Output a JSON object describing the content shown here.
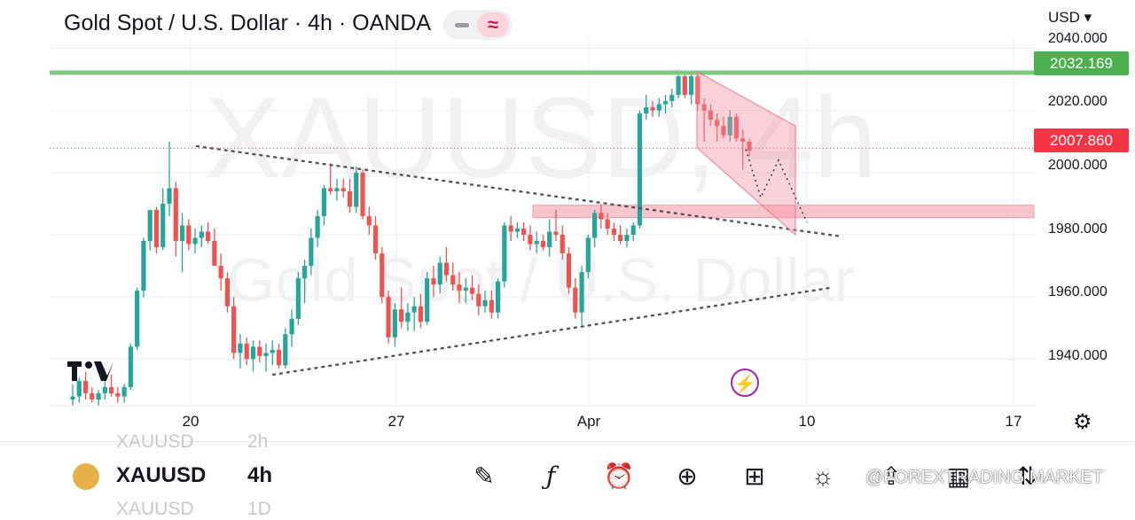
{
  "header": {
    "title": "Gold Spot / U.S. Dollar · 4h · OANDA",
    "currency": "USD"
  },
  "watermark_text": {
    "symbol_tf": "XAUUSD, 4h",
    "name": "Gold Spot / U.S. Dollar"
  },
  "price_axis": {
    "labels": [
      "2040.000",
      "2020.000",
      "2000.000",
      "1980.000",
      "1960.000",
      "1940.000"
    ]
  },
  "price_tags": {
    "resistance": "2032.169",
    "current": "2007.860"
  },
  "time_axis": {
    "labels": [
      "20",
      "27",
      "Apr",
      "10",
      "17"
    ]
  },
  "bottom_bar": {
    "ghost_above_symbol": "XAUUSD",
    "ghost_above_tf": "2h",
    "symbol": "XAUUSD",
    "timeframe": "4h",
    "ghost_below_symbol": "XAUUSD",
    "ghost_below_tf": "1D",
    "tools": [
      "draw-icon",
      "indicators-icon",
      "alert-icon",
      "add-icon",
      "layout-icon",
      "ideas-icon",
      "share-icon",
      "calendar-icon",
      "compare-icon"
    ]
  },
  "source_watermark": "@FOREXTRADING MARKET",
  "colors": {
    "up": "#26a69a",
    "down": "#ef5350",
    "resistance_line": "#81c784",
    "zone": "#f8bbc4",
    "current_price": "#f23645"
  },
  "chart_data": {
    "type": "candlestick",
    "ylim": [
      1925,
      2043
    ],
    "ygrid": [
      2040,
      2020,
      2000,
      1980,
      1960,
      1940
    ],
    "resistance": 2032.169,
    "current_price": 2007.86,
    "zone": [
      1985.5,
      1989.5
    ],
    "x_ticks": [
      "20",
      "27",
      "Apr",
      "10",
      "17"
    ],
    "candles": [
      {
        "o": 1927,
        "h": 1932,
        "l": 1925,
        "c": 1928
      },
      {
        "o": 1928,
        "h": 1934,
        "l": 1926,
        "c": 1933
      },
      {
        "o": 1933,
        "h": 1936,
        "l": 1927,
        "c": 1929
      },
      {
        "o": 1929,
        "h": 1931,
        "l": 1926,
        "c": 1927
      },
      {
        "o": 1927,
        "h": 1930,
        "l": 1925,
        "c": 1929
      },
      {
        "o": 1929,
        "h": 1933,
        "l": 1927,
        "c": 1931
      },
      {
        "o": 1931,
        "h": 1935,
        "l": 1928,
        "c": 1929
      },
      {
        "o": 1929,
        "h": 1931,
        "l": 1926,
        "c": 1928
      },
      {
        "o": 1928,
        "h": 1932,
        "l": 1926,
        "c": 1931
      },
      {
        "o": 1931,
        "h": 1945,
        "l": 1930,
        "c": 1944
      },
      {
        "o": 1944,
        "h": 1963,
        "l": 1943,
        "c": 1962
      },
      {
        "o": 1962,
        "h": 1979,
        "l": 1960,
        "c": 1978
      },
      {
        "o": 1978,
        "h": 1988,
        "l": 1975,
        "c": 1988
      },
      {
        "o": 1988,
        "h": 1989,
        "l": 1974,
        "c": 1976
      },
      {
        "o": 1976,
        "h": 1995,
        "l": 1975,
        "c": 1990
      },
      {
        "o": 1990,
        "h": 2010,
        "l": 1986,
        "c": 1995
      },
      {
        "o": 1995,
        "h": 1997,
        "l": 1973,
        "c": 1978
      },
      {
        "o": 1978,
        "h": 1987,
        "l": 1968,
        "c": 1983
      },
      {
        "o": 1983,
        "h": 1985,
        "l": 1975,
        "c": 1977
      },
      {
        "o": 1977,
        "h": 1982,
        "l": 1974,
        "c": 1979
      },
      {
        "o": 1979,
        "h": 1983,
        "l": 1976,
        "c": 1981
      },
      {
        "o": 1981,
        "h": 1984,
        "l": 1977,
        "c": 1978
      },
      {
        "o": 1978,
        "h": 1982,
        "l": 1970,
        "c": 1970
      },
      {
        "o": 1970,
        "h": 1974,
        "l": 1962,
        "c": 1966
      },
      {
        "o": 1966,
        "h": 1968,
        "l": 1955,
        "c": 1957
      },
      {
        "o": 1957,
        "h": 1960,
        "l": 1940,
        "c": 1942
      },
      {
        "o": 1942,
        "h": 1948,
        "l": 1937,
        "c": 1945
      },
      {
        "o": 1945,
        "h": 1947,
        "l": 1938,
        "c": 1940
      },
      {
        "o": 1940,
        "h": 1946,
        "l": 1936,
        "c": 1944
      },
      {
        "o": 1944,
        "h": 1946,
        "l": 1939,
        "c": 1941
      },
      {
        "o": 1941,
        "h": 1945,
        "l": 1936,
        "c": 1942
      },
      {
        "o": 1942,
        "h": 1946,
        "l": 1938,
        "c": 1943
      },
      {
        "o": 1943,
        "h": 1945,
        "l": 1937,
        "c": 1938
      },
      {
        "o": 1938,
        "h": 1950,
        "l": 1937,
        "c": 1948
      },
      {
        "o": 1948,
        "h": 1956,
        "l": 1944,
        "c": 1953
      },
      {
        "o": 1953,
        "h": 1968,
        "l": 1951,
        "c": 1966
      },
      {
        "o": 1966,
        "h": 1972,
        "l": 1958,
        "c": 1970
      },
      {
        "o": 1970,
        "h": 1982,
        "l": 1967,
        "c": 1979
      },
      {
        "o": 1979,
        "h": 1988,
        "l": 1976,
        "c": 1986
      },
      {
        "o": 1986,
        "h": 1996,
        "l": 1983,
        "c": 1995
      },
      {
        "o": 1995,
        "h": 2003,
        "l": 1993,
        "c": 1994
      },
      {
        "o": 1994,
        "h": 1998,
        "l": 1991,
        "c": 1995
      },
      {
        "o": 1995,
        "h": 1998,
        "l": 1992,
        "c": 1994
      },
      {
        "o": 1994,
        "h": 1998,
        "l": 1987,
        "c": 1989
      },
      {
        "o": 1989,
        "h": 2002,
        "l": 1987,
        "c": 2000
      },
      {
        "o": 2000,
        "h": 2001,
        "l": 1985,
        "c": 1986
      },
      {
        "o": 1986,
        "h": 1989,
        "l": 1980,
        "c": 1983
      },
      {
        "o": 1983,
        "h": 1986,
        "l": 1972,
        "c": 1974
      },
      {
        "o": 1974,
        "h": 1976,
        "l": 1958,
        "c": 1960
      },
      {
        "o": 1960,
        "h": 1962,
        "l": 1945,
        "c": 1947
      },
      {
        "o": 1947,
        "h": 1958,
        "l": 1944,
        "c": 1956
      },
      {
        "o": 1956,
        "h": 1963,
        "l": 1950,
        "c": 1952
      },
      {
        "o": 1952,
        "h": 1958,
        "l": 1949,
        "c": 1955
      },
      {
        "o": 1955,
        "h": 1960,
        "l": 1949,
        "c": 1957
      },
      {
        "o": 1957,
        "h": 1961,
        "l": 1950,
        "c": 1952
      },
      {
        "o": 1952,
        "h": 1968,
        "l": 1951,
        "c": 1966
      },
      {
        "o": 1966,
        "h": 1970,
        "l": 1960,
        "c": 1964
      },
      {
        "o": 1964,
        "h": 1973,
        "l": 1961,
        "c": 1971
      },
      {
        "o": 1971,
        "h": 1976,
        "l": 1965,
        "c": 1967
      },
      {
        "o": 1967,
        "h": 1971,
        "l": 1962,
        "c": 1964
      },
      {
        "o": 1964,
        "h": 1968,
        "l": 1958,
        "c": 1962
      },
      {
        "o": 1962,
        "h": 1966,
        "l": 1958,
        "c": 1963
      },
      {
        "o": 1963,
        "h": 1967,
        "l": 1959,
        "c": 1961
      },
      {
        "o": 1961,
        "h": 1964,
        "l": 1954,
        "c": 1957
      },
      {
        "o": 1957,
        "h": 1962,
        "l": 1955,
        "c": 1959
      },
      {
        "o": 1959,
        "h": 1962,
        "l": 1953,
        "c": 1955
      },
      {
        "o": 1955,
        "h": 1966,
        "l": 1953,
        "c": 1965
      },
      {
        "o": 1965,
        "h": 1984,
        "l": 1963,
        "c": 1983
      },
      {
        "o": 1983,
        "h": 1986,
        "l": 1978,
        "c": 1981
      },
      {
        "o": 1981,
        "h": 1984,
        "l": 1979,
        "c": 1982
      },
      {
        "o": 1982,
        "h": 1984,
        "l": 1978,
        "c": 1980
      },
      {
        "o": 1980,
        "h": 1983,
        "l": 1975,
        "c": 1977
      },
      {
        "o": 1977,
        "h": 1981,
        "l": 1974,
        "c": 1978
      },
      {
        "o": 1978,
        "h": 1980,
        "l": 1975,
        "c": 1976
      },
      {
        "o": 1976,
        "h": 1985,
        "l": 1973,
        "c": 1981
      },
      {
        "o": 1981,
        "h": 1988,
        "l": 1978,
        "c": 1980
      },
      {
        "o": 1980,
        "h": 1983,
        "l": 1972,
        "c": 1974
      },
      {
        "o": 1974,
        "h": 1976,
        "l": 1961,
        "c": 1963
      },
      {
        "o": 1963,
        "h": 1966,
        "l": 1953,
        "c": 1955
      },
      {
        "o": 1955,
        "h": 1970,
        "l": 1951,
        "c": 1968
      },
      {
        "o": 1968,
        "h": 1980,
        "l": 1966,
        "c": 1979
      },
      {
        "o": 1979,
        "h": 1988,
        "l": 1976,
        "c": 1987
      },
      {
        "o": 1987,
        "h": 1990,
        "l": 1982,
        "c": 1985
      },
      {
        "o": 1985,
        "h": 1987,
        "l": 1980,
        "c": 1982
      },
      {
        "o": 1982,
        "h": 1984,
        "l": 1978,
        "c": 1980
      },
      {
        "o": 1980,
        "h": 1983,
        "l": 1977,
        "c": 1978
      },
      {
        "o": 1978,
        "h": 1982,
        "l": 1976,
        "c": 1980
      },
      {
        "o": 1980,
        "h": 1984,
        "l": 1978,
        "c": 1983
      },
      {
        "o": 1983,
        "h": 2020,
        "l": 1982,
        "c": 2019
      },
      {
        "o": 2019,
        "h": 2025,
        "l": 2017,
        "c": 2021
      },
      {
        "o": 2021,
        "h": 2023,
        "l": 2018,
        "c": 2020
      },
      {
        "o": 2020,
        "h": 2024,
        "l": 2018,
        "c": 2022
      },
      {
        "o": 2022,
        "h": 2025,
        "l": 2019,
        "c": 2023
      },
      {
        "o": 2023,
        "h": 2027,
        "l": 2021,
        "c": 2025
      },
      {
        "o": 2025,
        "h": 2033,
        "l": 2024,
        "c": 2031
      },
      {
        "o": 2031,
        "h": 2032,
        "l": 2024,
        "c": 2025
      },
      {
        "o": 2025,
        "h": 2032,
        "l": 2022,
        "c": 2031
      },
      {
        "o": 2031,
        "h": 2032,
        "l": 2020,
        "c": 2022
      },
      {
        "o": 2022,
        "h": 2024,
        "l": 2010,
        "c": 2020
      },
      {
        "o": 2020,
        "h": 2022,
        "l": 2015,
        "c": 2017
      },
      {
        "o": 2017,
        "h": 2019,
        "l": 2010,
        "c": 2015
      },
      {
        "o": 2015,
        "h": 2018,
        "l": 2011,
        "c": 2012
      },
      {
        "o": 2012,
        "h": 2020,
        "l": 2010,
        "c": 2018
      },
      {
        "o": 2018,
        "h": 2019,
        "l": 2010,
        "c": 2011
      },
      {
        "o": 2011,
        "h": 2014,
        "l": 2001,
        "c": 2010
      },
      {
        "o": 2010,
        "h": 2011,
        "l": 2005,
        "c": 2007
      }
    ]
  }
}
